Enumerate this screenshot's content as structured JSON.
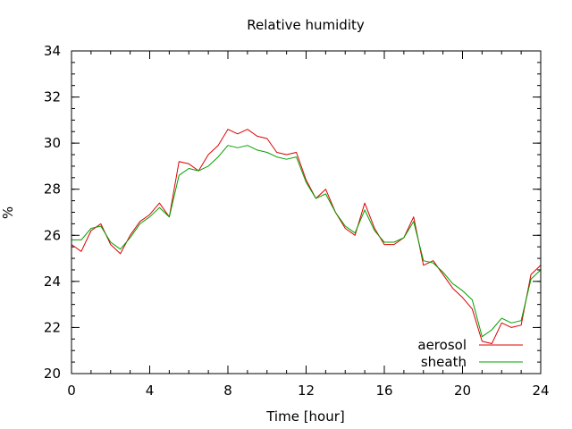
{
  "chart_data": {
    "type": "line",
    "title": "Relative humidity",
    "xlabel": "Time [hour]",
    "ylabel": "%",
    "xlim": [
      0,
      24
    ],
    "ylim": [
      20,
      34
    ],
    "x_ticks": [
      0,
      4,
      8,
      12,
      16,
      20,
      24
    ],
    "y_ticks": [
      20,
      22,
      24,
      26,
      28,
      30,
      32,
      34
    ],
    "x_minor_step": 1,
    "y_minor_step": 0.5,
    "grid": false,
    "legend_position": "bottom-right",
    "series": [
      {
        "name": "aerosol",
        "color": "#dd0000",
        "x": [
          0.0,
          0.5,
          1.0,
          1.5,
          2.0,
          2.5,
          3.0,
          3.5,
          4.0,
          4.5,
          5.0,
          5.5,
          6.0,
          6.5,
          7.0,
          7.5,
          8.0,
          8.5,
          9.0,
          9.5,
          10.0,
          10.5,
          11.0,
          11.5,
          12.0,
          12.5,
          13.0,
          13.5,
          14.0,
          14.5,
          15.0,
          15.5,
          16.0,
          16.5,
          17.0,
          17.5,
          18.0,
          18.5,
          19.0,
          19.5,
          20.0,
          20.5,
          21.0,
          21.5,
          22.0,
          22.5,
          23.0,
          23.5,
          24.0
        ],
        "y": [
          25.6,
          25.3,
          26.2,
          26.5,
          25.6,
          25.2,
          26.0,
          26.6,
          26.9,
          27.4,
          26.8,
          29.2,
          29.1,
          28.8,
          29.5,
          29.9,
          30.6,
          30.4,
          30.6,
          30.3,
          30.2,
          29.6,
          29.5,
          29.6,
          28.4,
          27.6,
          28.0,
          27.0,
          26.3,
          26.0,
          27.4,
          26.3,
          25.6,
          25.6,
          25.9,
          26.8,
          24.7,
          24.9,
          24.3,
          23.7,
          23.3,
          22.8,
          21.4,
          21.3,
          22.2,
          22.0,
          22.1,
          24.3,
          24.7
        ]
      },
      {
        "name": "sheath",
        "color": "#00a000",
        "x": [
          0.0,
          0.5,
          1.0,
          1.5,
          2.0,
          2.5,
          3.0,
          3.5,
          4.0,
          4.5,
          5.0,
          5.5,
          6.0,
          6.5,
          7.0,
          7.5,
          8.0,
          8.5,
          9.0,
          9.5,
          10.0,
          10.5,
          11.0,
          11.5,
          12.0,
          12.5,
          13.0,
          13.5,
          14.0,
          14.5,
          15.0,
          15.5,
          16.0,
          16.5,
          17.0,
          17.5,
          18.0,
          18.5,
          19.0,
          19.5,
          20.0,
          20.5,
          21.0,
          21.5,
          22.0,
          22.5,
          23.0,
          23.5,
          24.0
        ],
        "y": [
          25.8,
          25.8,
          26.3,
          26.4,
          25.7,
          25.4,
          25.9,
          26.5,
          26.8,
          27.2,
          26.8,
          28.6,
          28.9,
          28.8,
          29.0,
          29.4,
          29.9,
          29.8,
          29.9,
          29.7,
          29.6,
          29.4,
          29.3,
          29.4,
          28.3,
          27.6,
          27.8,
          27.0,
          26.4,
          26.1,
          27.1,
          26.2,
          25.7,
          25.7,
          25.9,
          26.6,
          24.9,
          24.8,
          24.4,
          23.9,
          23.6,
          23.2,
          21.6,
          21.9,
          22.4,
          22.2,
          22.3,
          24.1,
          24.5
        ]
      }
    ]
  }
}
